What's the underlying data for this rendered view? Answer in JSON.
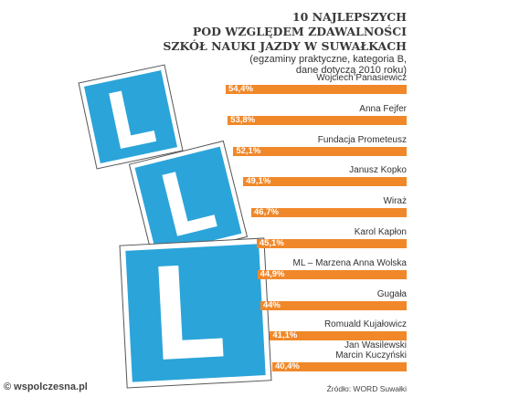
{
  "chart_data": {
    "type": "bar",
    "orientation": "horizontal",
    "title": [
      "10 NAJLEPSZYCH",
      "POD WZGLĘDEM ZDAWALNOŚCI",
      "SZKÓŁ NAUKI JAZDY W SUWAŁKACH"
    ],
    "subtitle": [
      "(egzaminy praktyczne, kategoria B,",
      "dane dotyczą 2010 roku)"
    ],
    "categories": [
      "Wojciech Panasiewicz",
      "Anna Fejfer",
      "Fundacja Prometeusz",
      "Janusz Kopko",
      "Wiraż",
      "Karol Kapłon",
      "ML – Marzena Anna Wolska",
      "Gugała",
      "Romuald Kujałowicz",
      "Jan Wasilewski\nMarcin Kuczyński"
    ],
    "values": [
      54.4,
      53.8,
      52.1,
      49.1,
      46.7,
      45.1,
      44.9,
      44,
      41.1,
      40.4
    ],
    "value_labels": [
      "54,4%",
      "53,8%",
      "52,1%",
      "49,1%",
      "46,7%",
      "45,1%",
      "44,9%",
      "44%",
      "41,1%",
      "40,4%"
    ],
    "color": "#f0882a",
    "source": "Źródło: WORD Suwałki",
    "watermark": "© wspolczesna.pl"
  }
}
